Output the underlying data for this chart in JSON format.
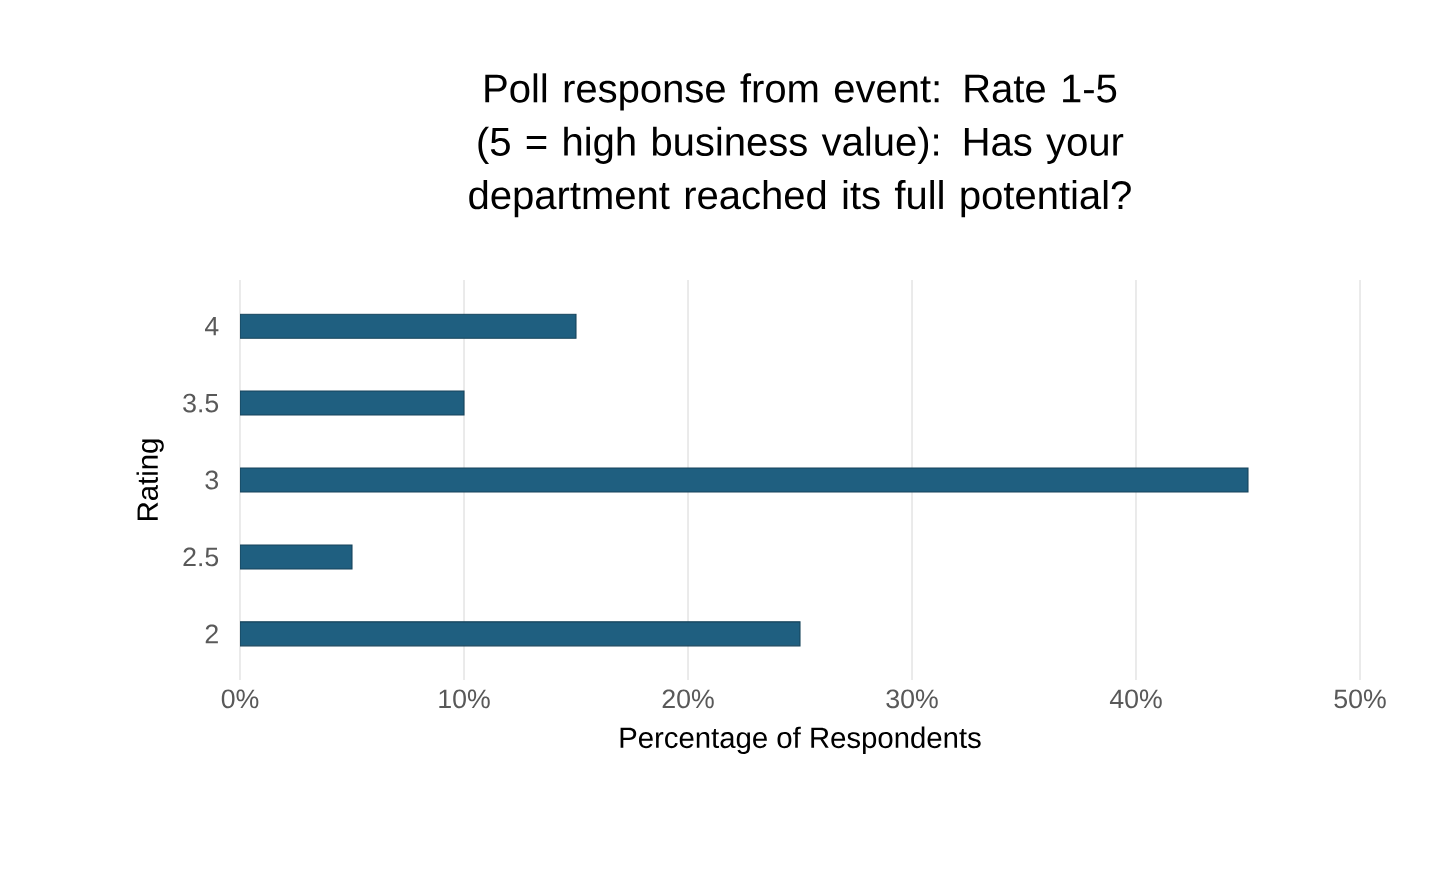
{
  "chart_data": {
    "type": "bar",
    "orientation": "horizontal",
    "title": "Poll response from event: Rate 1-5 (5 = high business value): Has your department reached its full potential?",
    "xlabel": "Percentage of Respondents",
    "ylabel": "Rating",
    "categories": [
      "4",
      "3.5",
      "3",
      "2.5",
      "2"
    ],
    "values": [
      15,
      10,
      45,
      5,
      25
    ],
    "color": "#1f5f80",
    "xlim": [
      0,
      50
    ],
    "xticks": [
      {
        "value": 0,
        "label": "0%"
      },
      {
        "value": 10,
        "label": "10%"
      },
      {
        "value": 20,
        "label": "20%"
      },
      {
        "value": 30,
        "label": "30%"
      },
      {
        "value": 40,
        "label": "40%"
      },
      {
        "value": 50,
        "label": "50%"
      }
    ],
    "grid": "x"
  }
}
